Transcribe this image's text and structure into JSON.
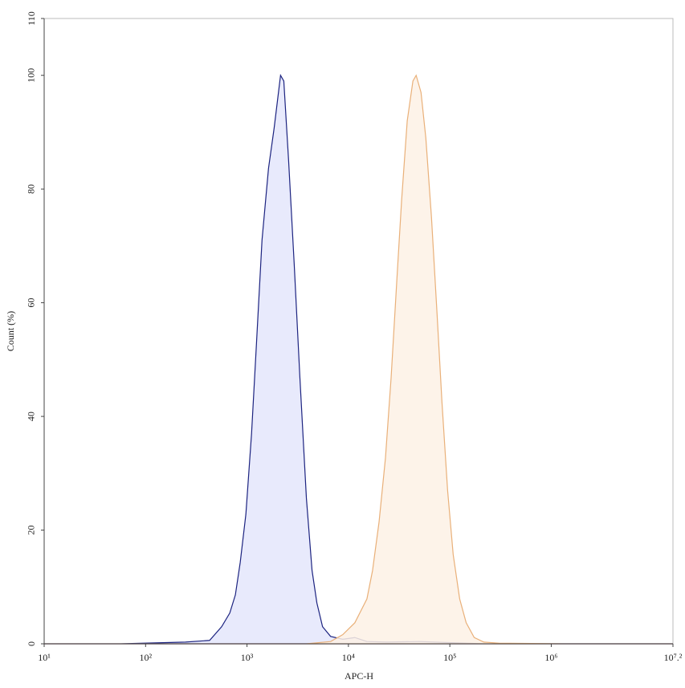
{
  "chart_data": {
    "type": "histogram-overlay",
    "xlabel": "APC-H",
    "ylabel": "Count (%)",
    "xscale": "log",
    "xlim": [
      10,
      15848932
    ],
    "ylim": [
      0,
      110
    ],
    "xticks": [
      {
        "value": 10,
        "label": "10¹"
      },
      {
        "value": 100,
        "label": "10²"
      },
      {
        "value": 1000,
        "label": "10³"
      },
      {
        "value": 10000,
        "label": "10⁴"
      },
      {
        "value": 100000,
        "label": "10⁵"
      },
      {
        "value": 1000000,
        "label": "10⁶"
      },
      {
        "value": 15848932,
        "label": "10⁷.²"
      }
    ],
    "yticks": [
      0,
      20,
      40,
      60,
      80,
      100,
      110
    ],
    "series": [
      {
        "color": "#1c2380",
        "fill": "#e4e6fb",
        "x": [
          10,
          57,
          247,
          428,
          562,
          676,
          768,
          857,
          975,
          1109,
          1237,
          1406,
          1629,
          1851,
          2142,
          2306,
          2572,
          2924,
          3324,
          3852,
          4379,
          4886,
          5559,
          6672,
          8785,
          11570,
          15220,
          24040,
          50010,
          104000,
          216700,
          1352000,
          15848932
        ],
        "values": [
          0,
          0,
          0.3,
          0.6,
          3,
          5.4,
          8.6,
          14.3,
          22.8,
          37,
          52.5,
          71,
          83.6,
          90.7,
          100,
          99,
          85,
          66.6,
          46.8,
          25.6,
          12.9,
          7.2,
          3,
          1.3,
          0.8,
          1.1,
          0.4,
          0.3,
          0.4,
          0.2,
          0,
          0,
          0
        ]
      },
      {
        "color": "#e9b079",
        "fill": "#fdf1e5",
        "x": [
          10,
          3846,
          6672,
          8785,
          11570,
          15220,
          17300,
          20040,
          23190,
          26360,
          29980,
          33450,
          38010,
          43240,
          46540,
          51980,
          57970,
          65910,
          74850,
          83560,
          95050,
          107900,
          125000,
          144900,
          173800,
          216700,
          312600,
          1352000,
          15848932
        ],
        "values": [
          0,
          0,
          0.4,
          1.6,
          3.7,
          7.9,
          12.9,
          21.4,
          32.7,
          46.8,
          63.8,
          78,
          92,
          99,
          100,
          97,
          89,
          75,
          58,
          42.6,
          27,
          15.7,
          7.9,
          3.7,
          1.1,
          0.3,
          0.1,
          0,
          0
        ]
      }
    ]
  }
}
